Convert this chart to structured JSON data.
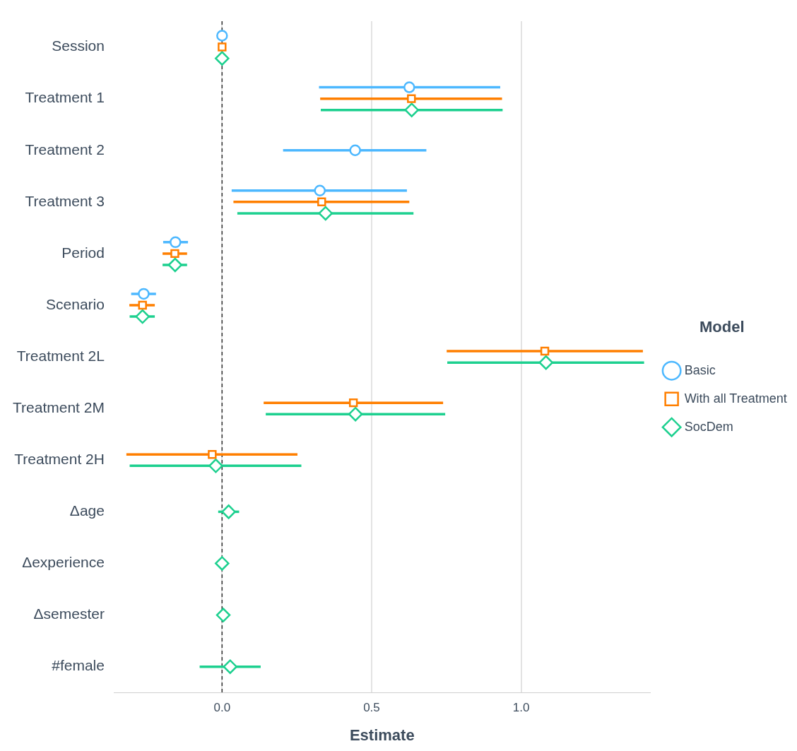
{
  "chart_data": {
    "type": "scatter",
    "orientation": "horizontal",
    "xlabel": "Estimate",
    "legend_title": "Model",
    "legend": "right",
    "grid": "x",
    "categories": [
      "Session",
      "Treatment 1",
      "Treatment 2",
      "Treatment 3",
      "Period",
      "Scenario",
      "Treatment 2L",
      "Treatment 2M",
      "Treatment 2H",
      "Δage",
      "Δexperience",
      "Δsemester",
      "#female"
    ],
    "xlim": [
      -0.36,
      1.43
    ],
    "xticks": [
      {
        "value": 0,
        "label": "0.0"
      },
      {
        "value": 0.5,
        "label": "0.5"
      },
      {
        "value": 1,
        "label": "1.0"
      }
    ],
    "ref_lines": [
      {
        "axis": "x",
        "value": 0,
        "line_style": "dashed",
        "color": "#333333"
      }
    ],
    "series": [
      {
        "name": "Basic",
        "color": "#4db8ff",
        "marker": "circle",
        "values": [
          0,
          0.626,
          0.445,
          0.327,
          -0.156,
          -0.262,
          null,
          null,
          null,
          null,
          null,
          null,
          null
        ],
        "errors": [
          null,
          [
            0.324,
            0.93
          ],
          [
            0.204,
            0.683
          ],
          [
            0.032,
            0.618
          ],
          [
            -0.197,
            -0.114
          ],
          [
            -0.304,
            -0.221
          ],
          null,
          null,
          null,
          null,
          null,
          null,
          null
        ]
      },
      {
        "name": "With all Treatment",
        "color": "#ff7f00",
        "marker": "square",
        "values": [
          0,
          0.633,
          null,
          0.333,
          -0.158,
          -0.266,
          1.079,
          0.439,
          -0.033,
          null,
          null,
          null,
          null
        ],
        "errors": [
          null,
          [
            0.328,
            0.936
          ],
          null,
          [
            0.038,
            0.626
          ],
          [
            -0.199,
            -0.117
          ],
          [
            -0.31,
            -0.225
          ],
          [
            0.751,
            1.407
          ],
          [
            0.139,
            0.739
          ],
          [
            -0.32,
            0.252
          ],
          null,
          null,
          null,
          null
        ]
      },
      {
        "name": "SocDem",
        "color": "#1dd08f",
        "marker": "diamond",
        "values": [
          0,
          0.634,
          null,
          0.346,
          -0.157,
          -0.266,
          1.083,
          0.446,
          -0.021,
          0.022,
          0,
          0.004,
          0.027
        ],
        "errors": [
          null,
          [
            0.33,
            0.938
          ],
          null,
          [
            0.051,
            0.64
          ],
          [
            -0.199,
            -0.117
          ],
          [
            -0.309,
            -0.225
          ],
          [
            0.753,
            1.411
          ],
          [
            0.146,
            0.746
          ],
          [
            -0.309,
            0.265
          ],
          [
            -0.013,
            0.057
          ],
          null,
          null,
          [
            -0.075,
            0.129
          ]
        ]
      }
    ]
  }
}
